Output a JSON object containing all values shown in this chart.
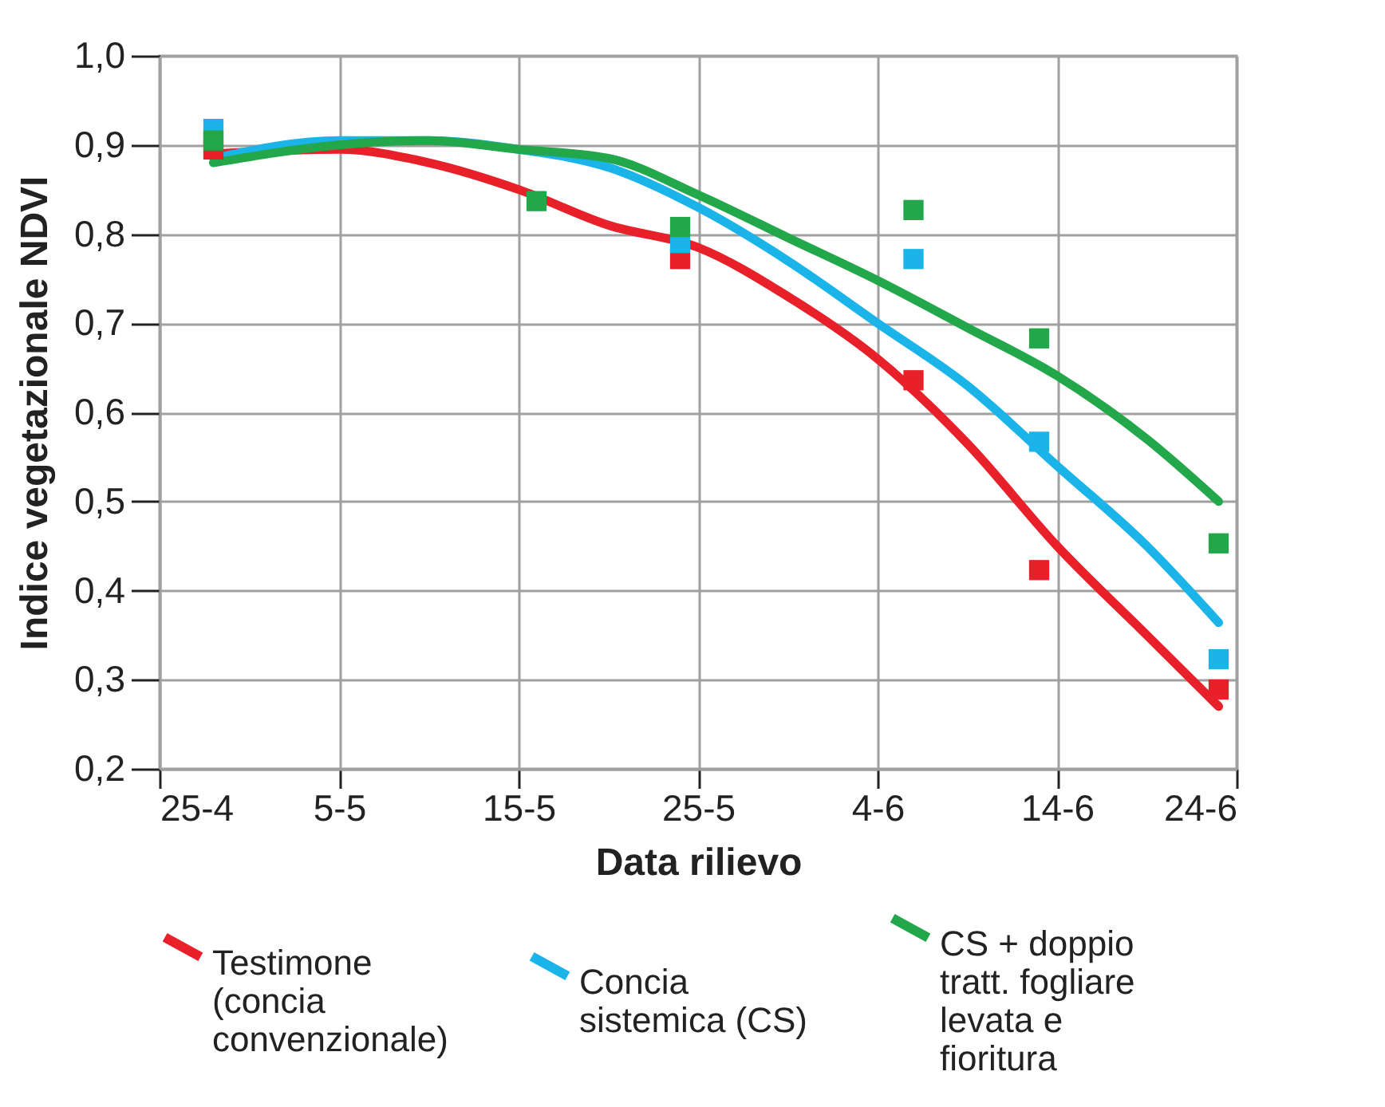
{
  "chart_data": {
    "type": "scatter",
    "xlabel": "Data rilievo",
    "ylabel": "Indice vegetazionale NDVI",
    "xlim": [
      "--04-25",
      "--06-24"
    ],
    "xticks": [
      {
        "value": "--04-25",
        "label": "25-4"
      },
      {
        "value": "--05-05",
        "label": "5-5"
      },
      {
        "value": "--05-15",
        "label": "15-5"
      },
      {
        "value": "--05-25",
        "label": "25-5"
      },
      {
        "value": "--06-04",
        "label": "4-6"
      },
      {
        "value": "--06-14",
        "label": "14-6"
      },
      {
        "value": "--06-24",
        "label": "24-6"
      }
    ],
    "ylim": [
      0.2,
      1.0
    ],
    "yticks": [
      {
        "value": 0.2,
        "label": "0,2"
      },
      {
        "value": 0.3,
        "label": "0,3"
      },
      {
        "value": 0.4,
        "label": "0,4"
      },
      {
        "value": 0.5,
        "label": "0,5"
      },
      {
        "value": 0.6,
        "label": "0,6"
      },
      {
        "value": 0.7,
        "label": "0,7"
      },
      {
        "value": 0.8,
        "label": "0,8"
      },
      {
        "value": 0.9,
        "label": "0,9"
      },
      {
        "value": 1.0,
        "label": "1,0"
      }
    ],
    "grid": true,
    "legend": "bottom",
    "line_style": "solid",
    "x": [
      "--04-28",
      "--05-16",
      "--05-24",
      "--06-06",
      "--06-13",
      "--06-23"
    ],
    "series": [
      {
        "type": "line",
        "name": "Testimone (concia convenzionale)",
        "color": "#e8202a",
        "x": [
          "--04-28",
          "--05-05",
          "--05-10",
          "--05-15",
          "--05-20",
          "--05-25",
          "--05-30",
          "--06-04",
          "--06-09",
          "--06-14",
          "--06-19",
          "--06-23"
        ],
        "values": [
          0.89,
          0.895,
          0.88,
          0.85,
          0.81,
          0.785,
          0.73,
          0.66,
          0.565,
          0.45,
          0.35,
          0.27
        ]
      },
      {
        "type": "line",
        "name": "Concia sistemica (CS)",
        "color": "#1ab4e8",
        "x": [
          "--04-28",
          "--05-05",
          "--05-10",
          "--05-15",
          "--05-20",
          "--05-25",
          "--05-30",
          "--06-04",
          "--06-09",
          "--06-14",
          "--06-19",
          "--06-23"
        ],
        "values": [
          0.885,
          0.905,
          0.905,
          0.895,
          0.875,
          0.83,
          0.77,
          0.7,
          0.63,
          0.54,
          0.45,
          0.364
        ]
      },
      {
        "type": "line",
        "name": "CS + doppio tratt. fogliare levata e fioritura",
        "color": "#22a84a",
        "x": [
          "--04-28",
          "--05-05",
          "--05-10",
          "--05-15",
          "--05-20",
          "--05-25",
          "--05-30",
          "--06-04",
          "--06-09",
          "--06-14",
          "--06-19",
          "--06-23"
        ],
        "values": [
          0.88,
          0.9,
          0.905,
          0.895,
          0.885,
          0.844,
          0.796,
          0.748,
          0.695,
          0.641,
          0.57,
          0.5
        ]
      },
      {
        "marker": "square",
        "color": "#e8202a",
        "values": [
          0.895,
          null,
          0.772,
          0.636,
          0.423,
          0.289
        ]
      },
      {
        "marker": "square",
        "color": "#1ab4e8",
        "values": [
          0.918,
          null,
          0.79,
          0.772,
          0.567,
          0.323
        ]
      },
      {
        "marker": "square",
        "color": "#22a84a",
        "values": [
          0.905,
          0.837,
          0.808,
          0.827,
          0.683,
          0.453
        ]
      }
    ]
  }
}
